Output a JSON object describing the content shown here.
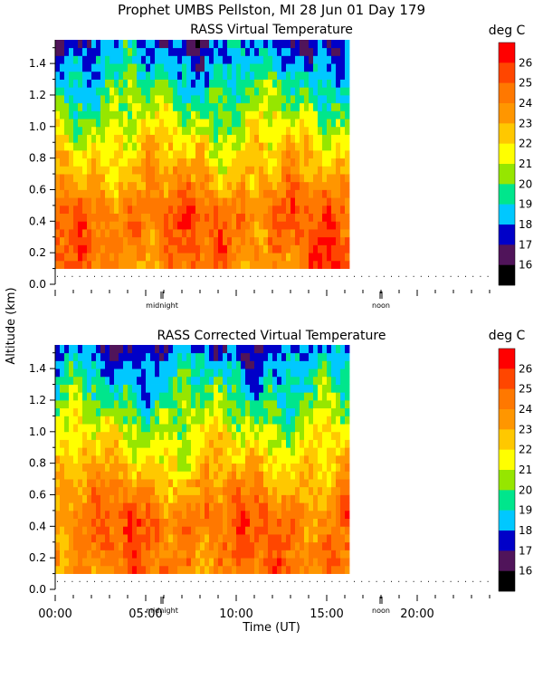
{
  "header": {
    "title": "Prophet  UMBS Pellston, MI  28 Jun 01 Day 179"
  },
  "y_axis_label": "Altitude (km)",
  "x_axis_label": "Time (UT)",
  "x_ticks": [
    "00:00",
    "05:00",
    "10:00",
    "15:00",
    "20:00"
  ],
  "x_ticks_hours": [
    0,
    5,
    10,
    15,
    20
  ],
  "markers": [
    {
      "label": "midnight",
      "hour": 5.9
    },
    {
      "label": "noon",
      "hour": 18.0
    }
  ],
  "colorbar": {
    "unit": "deg C",
    "levels": [
      26,
      25,
      24,
      23,
      22,
      21,
      20,
      19,
      18,
      17,
      16
    ],
    "colors": [
      "#ff0000",
      "#ff4600",
      "#ff7800",
      "#ff9600",
      "#ffc800",
      "#ffff00",
      "#96e600",
      "#00e68c",
      "#00c8ff",
      "#0000c8",
      "#50145a",
      "#000000"
    ]
  },
  "chart_data": [
    {
      "type": "heatmap",
      "title": "RASS Virtual Temperature",
      "xlabel": "Time (UT)",
      "ylabel": "Altitude (km)",
      "xlim": [
        0,
        24
      ],
      "ylim": [
        0,
        1.55
      ],
      "data_xlim": [
        0,
        16.2
      ],
      "data_ylim": [
        0.1,
        1.55
      ],
      "y_ticks": [
        0.0,
        0.2,
        0.4,
        0.6,
        0.8,
        1.0,
        1.2,
        1.4
      ],
      "value_unit": "deg C",
      "description": "Temperature ~24-25 deg C near 0.2-0.5 km, cooling to ~17-19 deg C above 1.0 km"
    },
    {
      "type": "heatmap",
      "title": "RASS Corrected Virtual Temperature",
      "xlabel": "Time (UT)",
      "ylabel": "Altitude (km)",
      "xlim": [
        0,
        24
      ],
      "ylim": [
        0,
        1.55
      ],
      "data_xlim": [
        0,
        16.2
      ],
      "data_ylim": [
        0.1,
        1.55
      ],
      "y_ticks": [
        0.0,
        0.2,
        0.4,
        0.6,
        0.8,
        1.0,
        1.2,
        1.4
      ],
      "value_unit": "deg C",
      "description": "Corrected temperature ~24-25 deg C near 0.2-0.5 km, cooling to ~17-19 deg C above 1.0 km"
    }
  ]
}
